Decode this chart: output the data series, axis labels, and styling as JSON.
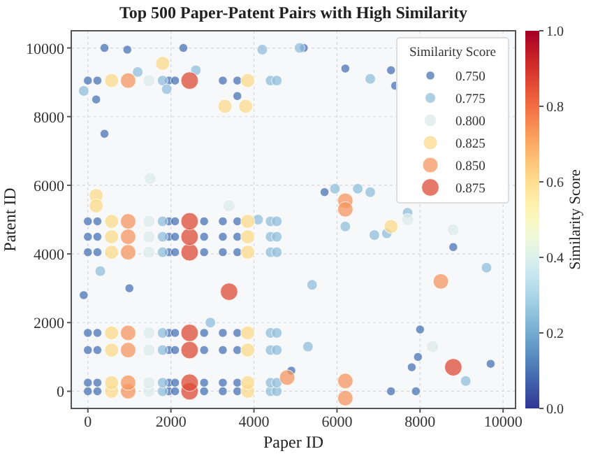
{
  "chart_data": {
    "type": "bubble",
    "title": "Top 500 Paper-Patent Pairs with High Similarity",
    "xlabel": "Paper ID",
    "ylabel": "Patent ID",
    "clabel": "Similarity Score",
    "legend_title": "Similarity Score",
    "xlim": [
      -400,
      10300
    ],
    "ylim": [
      -500,
      10500
    ],
    "xticks": [
      0,
      2000,
      4000,
      6000,
      8000,
      10000
    ],
    "yticks": [
      0,
      2000,
      4000,
      6000,
      8000,
      10000
    ],
    "clim": [
      0,
      1
    ],
    "cticks": [
      {
        "value": 0,
        "label": "0.0"
      },
      {
        "value": 0.2,
        "label": "0.2"
      },
      {
        "value": 0.4,
        "label": "0.4"
      },
      {
        "value": 0.6,
        "label": "0.6"
      },
      {
        "value": 0.8,
        "label": "0.8"
      },
      {
        "value": 1,
        "label": "1.0"
      }
    ],
    "grid": true,
    "legend": "top right",
    "marker": "circle",
    "series": [
      {
        "name": "0.750",
        "color": "#4a74b4",
        "x": [
          0,
          230,
          1950,
          2100,
          2800,
          3250,
          3600,
          0,
          230,
          1950,
          2100,
          2800,
          3250,
          3600,
          0,
          230,
          1950,
          2100,
          2800,
          3250,
          3600,
          0,
          230,
          1950,
          2100,
          2800,
          3250,
          3600,
          0,
          230,
          1950,
          2100,
          2800,
          3250,
          3600,
          0,
          230,
          1950,
          2100,
          2800,
          3250,
          3600,
          0,
          230,
          1950,
          2100,
          2800,
          3250,
          3600,
          0,
          230,
          1950,
          2100,
          3250,
          3600,
          400,
          950,
          2300,
          5200,
          200,
          400,
          3600,
          6200,
          7300,
          7400,
          5700,
          8800,
          8000,
          7950,
          7800,
          9700,
          7300,
          7900,
          4900,
          1000,
          -100
        ],
        "values": [
          0,
          0,
          0,
          0,
          0,
          0,
          0,
          250,
          250,
          250,
          250,
          250,
          250,
          250,
          1200,
          1200,
          1200,
          1200,
          1200,
          1200,
          1200,
          1700,
          1700,
          1700,
          1700,
          1700,
          1700,
          1700,
          4050,
          4050,
          4050,
          4050,
          4050,
          4050,
          4050,
          4500,
          4500,
          4500,
          4500,
          4500,
          4500,
          4500,
          4950,
          4950,
          4950,
          4950,
          4950,
          4950,
          4950,
          9050,
          9050,
          9050,
          9050,
          9050,
          9050,
          10000,
          9950,
          10000,
          10000,
          8500,
          7500,
          8600,
          9400,
          9350,
          8900,
          5800,
          4200,
          1800,
          1000,
          700,
          800,
          0,
          0,
          600,
          3000,
          2800
        ],
        "sizes": [
          0.25,
          0.25,
          0.25,
          0.25,
          0.25,
          0.25,
          0.25,
          0.25,
          0.25,
          0.25,
          0.25,
          0.25,
          0.25,
          0.25,
          0.25,
          0.25,
          0.25,
          0.25,
          0.25,
          0.25,
          0.25,
          0.25,
          0.25,
          0.25,
          0.25,
          0.25,
          0.25,
          0.25,
          0.25,
          0.25,
          0.25,
          0.25,
          0.25,
          0.25,
          0.25,
          0.25,
          0.25,
          0.25,
          0.25,
          0.25,
          0.25,
          0.25,
          0.25,
          0.25,
          0.25,
          0.25,
          0.25,
          0.25,
          0.25,
          0.25,
          0.25,
          0.25,
          0.25,
          0.25,
          0.25,
          0.25,
          0.25,
          0.25,
          0.25,
          0.25,
          0.25,
          0.25,
          0.25,
          0.25,
          0.25,
          0.25,
          0.25,
          0.25,
          0.25,
          0.25,
          0.25,
          0.25,
          0.25,
          0.25,
          0.25,
          0.25
        ]
      },
      {
        "name": "0.775",
        "color": "#91bfdb",
        "x": [
          1800,
          4400,
          4550,
          1800,
          4400,
          4550,
          1800,
          4400,
          4550,
          1800,
          4400,
          4550,
          1800,
          4400,
          4550,
          1800,
          4400,
          4550,
          1800,
          4400,
          4550,
          1800,
          4400,
          4550,
          5100,
          4200,
          1200,
          1900,
          2600,
          6800,
          -100,
          4100,
          5950,
          6500,
          6800,
          7700,
          6200,
          6900,
          7200,
          9600,
          5400,
          9100,
          5300,
          2950,
          300
        ],
        "values": [
          0,
          0,
          0,
          250,
          250,
          250,
          1200,
          1200,
          1200,
          1700,
          1700,
          1700,
          4050,
          4050,
          4050,
          4500,
          4500,
          4500,
          4950,
          4950,
          4950,
          9050,
          9050,
          9050,
          10000,
          9950,
          9300,
          8800,
          9350,
          9100,
          8750,
          5000,
          5900,
          5900,
          5800,
          5200,
          4800,
          4550,
          4600,
          3600,
          3100,
          300,
          1300,
          2000,
          3500
        ],
        "sizes": [
          0.36,
          0.36,
          0.36,
          0.36,
          0.36,
          0.36,
          0.36,
          0.36,
          0.36,
          0.36,
          0.36,
          0.36,
          0.36,
          0.36,
          0.36,
          0.36,
          0.36,
          0.36,
          0.36,
          0.36,
          0.36,
          0.36,
          0.36,
          0.36,
          0.36,
          0.36,
          0.36,
          0.36,
          0.36,
          0.36,
          0.36,
          0.36,
          0.36,
          0.36,
          0.36,
          0.36,
          0.36,
          0.36,
          0.36,
          0.36,
          0.36,
          0.36,
          0.36,
          0.36,
          0.36
        ]
      },
      {
        "name": "0.800",
        "color": "#dcecea",
        "x": [
          1470,
          1470,
          1470,
          1470,
          1470,
          1470,
          1470,
          1470,
          1500,
          3400,
          7700,
          8800,
          8300
        ],
        "values": [
          0,
          250,
          1200,
          1700,
          4050,
          4500,
          4950,
          9050,
          6200,
          5400,
          5000,
          4700,
          1300
        ],
        "sizes": [
          0.49,
          0.49,
          0.49,
          0.49,
          0.49,
          0.49,
          0.49,
          0.49,
          0.49,
          0.49,
          0.49,
          0.49,
          0.49
        ]
      },
      {
        "name": "0.825",
        "color": "#fbd98a",
        "x": [
          570,
          3850,
          570,
          3850,
          570,
          3850,
          570,
          3850,
          570,
          3850,
          570,
          3850,
          570,
          3850,
          570,
          3850,
          1800,
          3300,
          3800,
          200,
          200,
          7300
        ],
        "values": [
          0,
          0,
          250,
          250,
          1200,
          1200,
          1700,
          1700,
          4050,
          4050,
          4500,
          4500,
          4950,
          4950,
          9050,
          9050,
          9550,
          8300,
          8300,
          5700,
          5400,
          4800
        ],
        "sizes": [
          0.64,
          0.64,
          0.64,
          0.64,
          0.64,
          0.64,
          0.64,
          0.64,
          0.64,
          0.64,
          0.64,
          0.64,
          0.64,
          0.64,
          0.64,
          0.64,
          0.64,
          0.64,
          0.64,
          0.64,
          0.64,
          0.64
        ]
      },
      {
        "name": "0.850",
        "color": "#f4955f",
        "x": [
          970,
          970,
          970,
          970,
          970,
          970,
          970,
          970,
          6200,
          6200,
          8500,
          6200,
          6200,
          4800
        ],
        "values": [
          0,
          250,
          1200,
          1700,
          4050,
          4500,
          4950,
          9050,
          5550,
          5300,
          3200,
          -200,
          300,
          400
        ],
        "sizes": [
          0.78,
          0.78,
          0.78,
          0.78,
          0.78,
          0.78,
          0.78,
          0.78,
          0.78,
          0.78,
          0.78,
          0.78,
          0.78,
          0.78
        ]
      },
      {
        "name": "0.875",
        "color": "#dc4b35",
        "x": [
          2450,
          2450,
          2450,
          2450,
          2450,
          2450,
          2450,
          2450,
          3400,
          8800
        ],
        "values": [
          0,
          250,
          1200,
          1700,
          4050,
          4500,
          4950,
          9050,
          2900,
          700
        ],
        "sizes": [
          1,
          1,
          1,
          1,
          1,
          1,
          1,
          1,
          1,
          1
        ]
      }
    ]
  }
}
